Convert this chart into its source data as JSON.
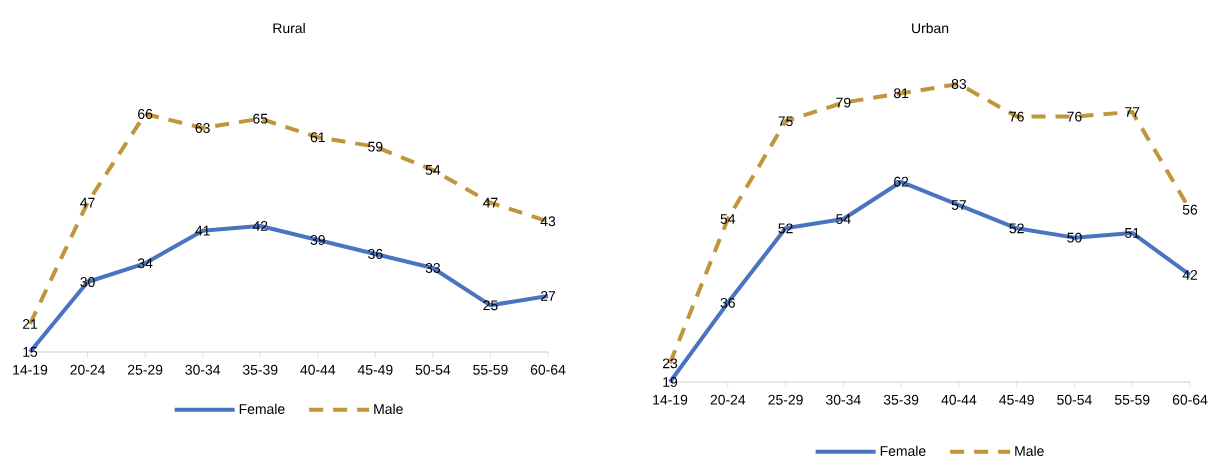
{
  "chart_data": [
    {
      "type": "line",
      "title": "Rural",
      "categories": [
        "14-19",
        "20-24",
        "25-29",
        "30-34",
        "35-39",
        "40-44",
        "45-49",
        "50-54",
        "55-59",
        "60-64"
      ],
      "series": [
        {
          "name": "Female",
          "color": "#4a74c0",
          "line_style": "solid",
          "values": [
            15,
            30,
            34,
            41,
            42,
            39,
            36,
            33,
            25,
            27
          ]
        },
        {
          "name": "Male",
          "color": "#c0963a",
          "line_style": "dashed",
          "values": [
            21,
            47,
            66,
            63,
            65,
            61,
            59,
            54,
            47,
            43
          ]
        }
      ],
      "data_labels": true,
      "legend": "bottom",
      "grid": false,
      "marker": "none"
    },
    {
      "type": "line",
      "title": "Urban",
      "categories": [
        "14-19",
        "20-24",
        "25-29",
        "30-34",
        "35-39",
        "40-44",
        "45-49",
        "50-54",
        "55-59",
        "60-64"
      ],
      "series": [
        {
          "name": "Female",
          "color": "#4a74c0",
          "line_style": "solid",
          "values": [
            19,
            36,
            52,
            54,
            62,
            57,
            52,
            50,
            51,
            42
          ]
        },
        {
          "name": "Male",
          "color": "#c0963a",
          "line_style": "dashed",
          "values": [
            23,
            54,
            75,
            79,
            81,
            83,
            76,
            76,
            77,
            56
          ]
        }
      ],
      "data_labels": true,
      "legend": "bottom",
      "grid": false,
      "marker": "none"
    }
  ]
}
